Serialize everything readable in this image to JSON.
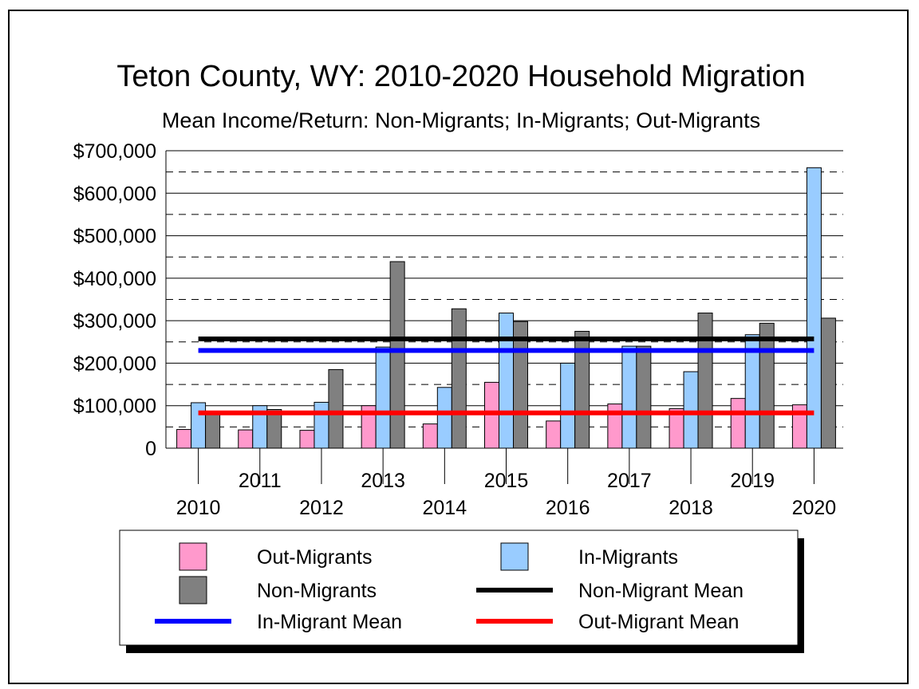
{
  "chart_data": {
    "type": "bar",
    "title": "Teton County, WY: 2010-2020 Household Migration",
    "subtitle": "Mean Income/Return: Non-Migrants; In-Migrants; Out-Migrants",
    "categories": [
      "2010",
      "2011",
      "2012",
      "2013",
      "2014",
      "2015",
      "2016",
      "2017",
      "2018",
      "2019",
      "2020"
    ],
    "series": [
      {
        "name": "Out-Migrants",
        "color": "#ff99cc",
        "values": [
          44000,
          43000,
          42000,
          100000,
          57000,
          155000,
          64000,
          104000,
          93000,
          117000,
          102000
        ]
      },
      {
        "name": "In-Migrants",
        "color": "#99ccff",
        "values": [
          107000,
          100000,
          108000,
          238000,
          143000,
          318000,
          200000,
          240000,
          180000,
          267000,
          660000
        ]
      },
      {
        "name": "Non-Migrants",
        "color": "#808080",
        "values": [
          83000,
          91000,
          185000,
          439000,
          328000,
          298000,
          275000,
          240000,
          318000,
          294000,
          306000
        ]
      }
    ],
    "mean_lines": [
      {
        "name": "Non-Migrant Mean",
        "color": "#000000",
        "value": 257000
      },
      {
        "name": "In-Migrant Mean",
        "color": "#0000ff",
        "value": 230000
      },
      {
        "name": "Out-Migrant Mean",
        "color": "#ff0000",
        "value": 83000
      }
    ],
    "ylim": [
      0,
      700000
    ],
    "yticks": [
      {
        "value": 700000,
        "label": "$700,000"
      },
      {
        "value": 600000,
        "label": "$600,000"
      },
      {
        "value": 500000,
        "label": "$500,000"
      },
      {
        "value": 400000,
        "label": "$400,000"
      },
      {
        "value": 300000,
        "label": "$300,000"
      },
      {
        "value": 200000,
        "label": "$200,000"
      },
      {
        "value": 100000,
        "label": "$100,000"
      },
      {
        "value": 0,
        "label": "0"
      }
    ],
    "major_grid": "solid",
    "minor_grid": "dashed",
    "legend_position": "bottom",
    "legend": [
      {
        "label": "Out-Migrants",
        "kind": "box",
        "color": "#ff99cc"
      },
      {
        "label": "In-Migrants",
        "kind": "box",
        "color": "#99ccff"
      },
      {
        "label": "Non-Migrants",
        "kind": "box",
        "color": "#808080"
      },
      {
        "label": "Non-Migrant Mean",
        "kind": "line",
        "color": "#000000"
      },
      {
        "label": "In-Migrant Mean",
        "kind": "line",
        "color": "#0000ff"
      },
      {
        "label": "Out-Migrant Mean",
        "kind": "line",
        "color": "#ff0000"
      }
    ]
  }
}
